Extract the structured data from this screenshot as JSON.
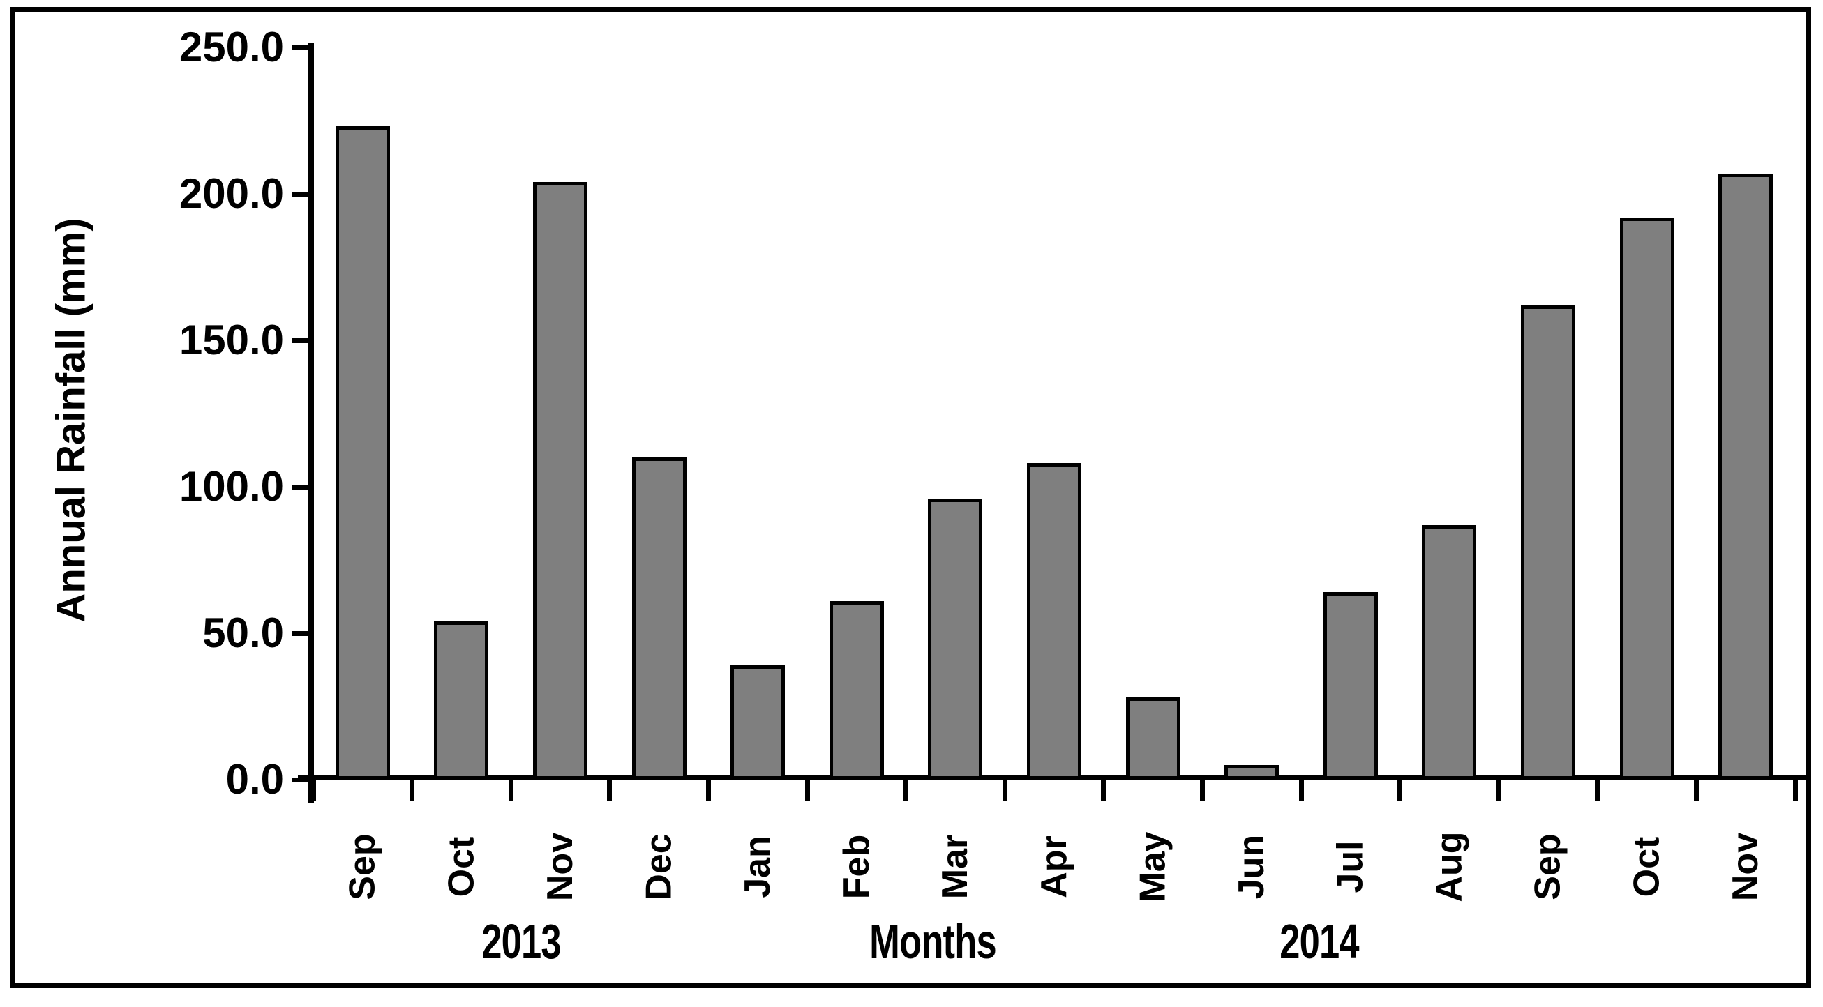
{
  "chart_data": {
    "type": "bar",
    "title": "",
    "ylabel": "Annual Rainfall (mm)",
    "xlabel": "Months",
    "x_group_labels": [
      "2013",
      "2014"
    ],
    "categories": [
      "Sep",
      "Oct",
      "Nov",
      "Dec",
      "Jan",
      "Feb",
      "Mar",
      "Apr",
      "May",
      "Jun",
      "Jul",
      "Aug",
      "Sep",
      "Oct",
      "Nov"
    ],
    "values": [
      223,
      54,
      204,
      110,
      39,
      61,
      96,
      108,
      28,
      5,
      64,
      87,
      162,
      192,
      207
    ],
    "ylim": [
      0,
      250
    ],
    "y_tick_labels": [
      "0.0",
      "50.0",
      "100.0",
      "150.0",
      "200.0",
      "250.0"
    ],
    "bar_fill": "#7f7f7f",
    "bar_outline": "#000000",
    "grid": false,
    "legend": null
  }
}
